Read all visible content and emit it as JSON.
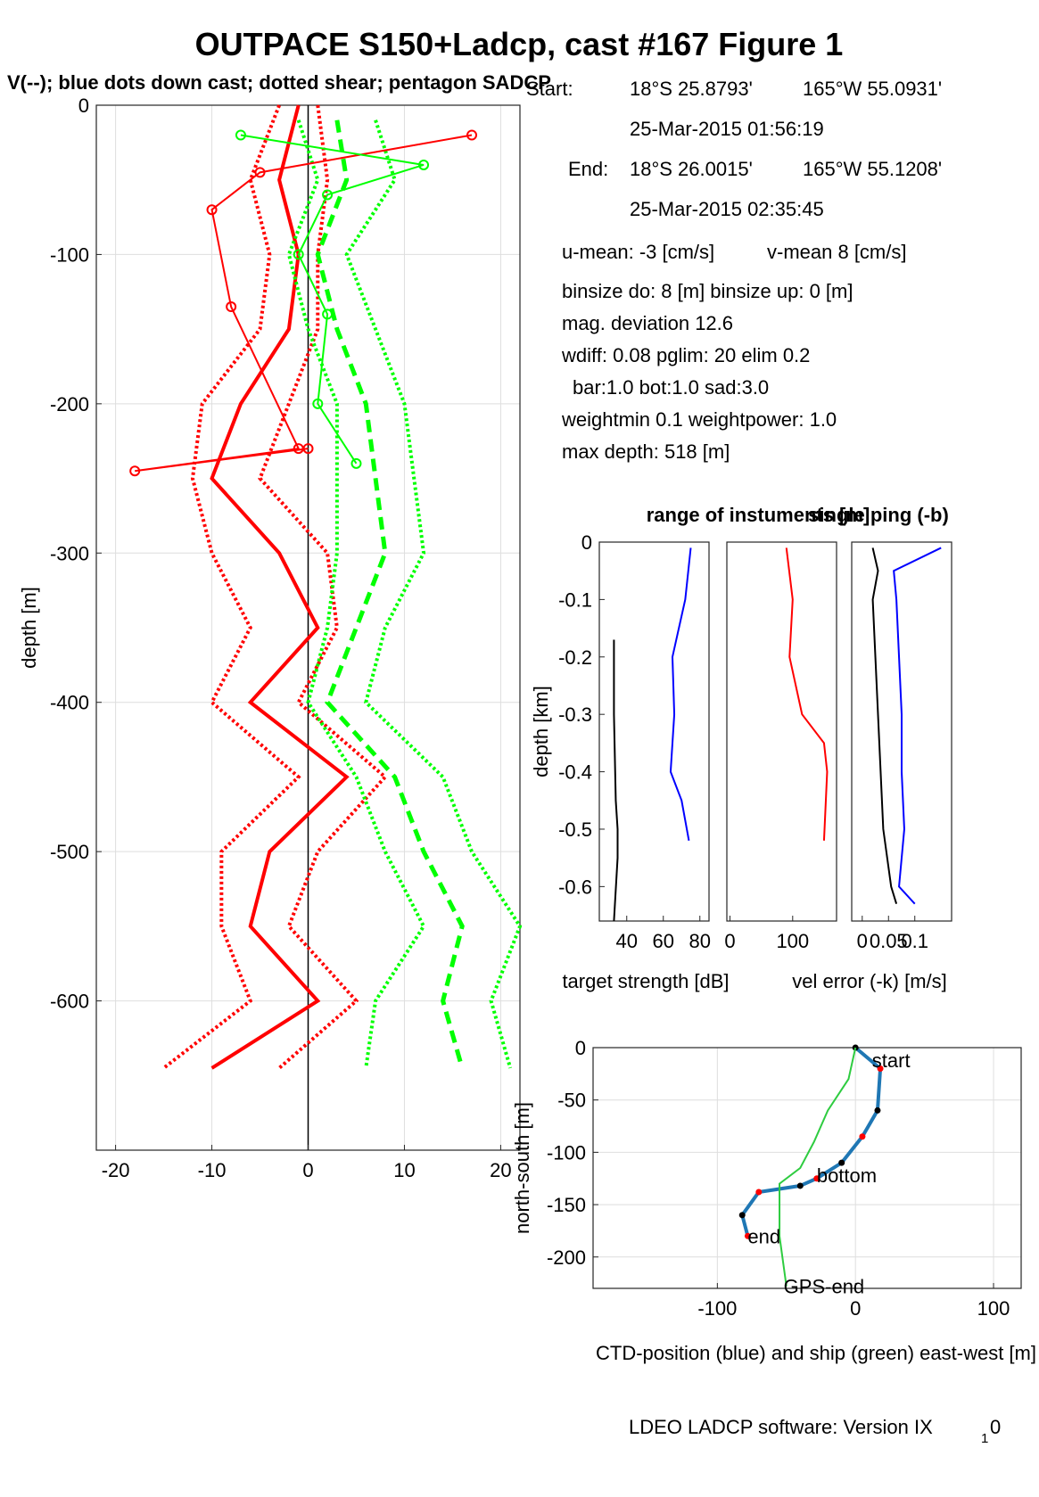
{
  "title": "OUTPACE S150+Ladcp, cast #167  Figure 1",
  "subtitle": "V(--); blue dots down cast; dotted shear; pentagon SADCP",
  "info": {
    "start_label": "Start:",
    "start_lat": "18°S 25.8793'",
    "start_lon": "165°W 55.0931'",
    "start_time": "25-Mar-2015 01:56:19",
    "end_label": "End:",
    "end_lat": "18°S 26.0015'",
    "end_lon": "165°W 55.1208'",
    "end_time": "25-Mar-2015 02:35:45",
    "u_mean": "u-mean:  -3 [cm/s]",
    "v_mean": "v-mean   8 [cm/s]",
    "binsize": "binsize do: 8 [m]  binsize up:  0 [m]",
    "mag_dev": "mag. deviation 12.6",
    "wdiff": "wdiff: 0.08  pglim: 20  elim 0.2",
    "bar": "bar:1.0 bot:1.0 sad:3.0",
    "weight": "weightmin 0.1  weightpower: 1.0",
    "max_depth": "max depth: 518 [m]"
  },
  "footer": {
    "software": "LDEO LADCP software: Version IX",
    "sub": "1",
    "suffix": "0"
  },
  "colors": {
    "red": "#ff0000",
    "green": "#00ff00",
    "blue": "#0000ff",
    "ctd_blue": "#1f77b4",
    "ship_green": "#2ecc40",
    "yellow": "#ffff00",
    "black": "#000000"
  },
  "chart_data": [
    {
      "id": "velocity_profile",
      "type": "line",
      "xlim": [
        -22,
        22
      ],
      "ylim": [
        -700,
        0
      ],
      "xticks": [
        -20,
        -10,
        0,
        10,
        20
      ],
      "yticks": [
        0,
        -100,
        -200,
        -300,
        -400,
        -500,
        -600
      ],
      "ylabel": "depth [m]",
      "grid": true,
      "series": [
        {
          "color": "red",
          "style": "bold",
          "depth": [
            0,
            -50,
            -100,
            -150,
            -200,
            -250,
            -300,
            -350,
            -400,
            -450,
            -500,
            -550,
            -600,
            -645
          ],
          "values": [
            -1,
            -3,
            -1,
            -2,
            -7,
            -10,
            -3,
            1,
            -6,
            4,
            -4,
            -6,
            1,
            -10
          ]
        },
        {
          "color": "red",
          "style": "dotted-lo",
          "depth": [
            0,
            -50,
            -100,
            -150,
            -200,
            -250,
            -300,
            -350,
            -400,
            -450,
            -500,
            -550,
            -600,
            -645
          ],
          "values": [
            -3,
            -6,
            -4,
            -5,
            -11,
            -12,
            -10,
            -6,
            -10,
            -1,
            -9,
            -9,
            -6,
            -15
          ]
        },
        {
          "color": "red",
          "style": "dotted-hi",
          "depth": [
            0,
            -50,
            -100,
            -150,
            -200,
            -250,
            -300,
            -350,
            -400,
            -450,
            -500,
            -550,
            -600,
            -645
          ],
          "values": [
            1,
            2,
            1,
            1,
            -2,
            -5,
            2,
            3,
            -1,
            8,
            1,
            -2,
            5,
            -3
          ]
        },
        {
          "color": "green",
          "style": "dashed",
          "depth": [
            -10,
            -50,
            -100,
            -150,
            -200,
            -250,
            -300,
            -350,
            -400,
            -450,
            -500,
            -550,
            -600,
            -645
          ],
          "values": [
            3,
            4,
            1,
            3,
            6,
            7,
            8,
            5,
            2,
            9,
            12,
            16,
            14,
            16
          ]
        },
        {
          "color": "green",
          "style": "dotted-lo",
          "depth": [
            -10,
            -50,
            -100,
            -150,
            -200,
            -250,
            -300,
            -350,
            -400,
            -450,
            -500,
            -550,
            -600,
            -645
          ],
          "values": [
            -1,
            1,
            -2,
            0,
            3,
            3,
            3,
            2,
            0,
            5,
            8,
            12,
            7,
            6
          ]
        },
        {
          "color": "green",
          "style": "dotted-hi",
          "depth": [
            -10,
            -50,
            -100,
            -150,
            -200,
            -250,
            -300,
            -350,
            -400,
            -450,
            -500,
            -550,
            -600,
            -645
          ],
          "values": [
            7,
            9,
            4,
            7,
            10,
            11,
            12,
            8,
            6,
            14,
            17,
            22,
            19,
            21
          ]
        },
        {
          "color": "red",
          "style": "sadcp",
          "depth": [
            -20,
            -45,
            -70,
            -135,
            -230,
            -245,
            -230
          ],
          "values": [
            17,
            -5,
            -10,
            -8,
            -1,
            -18,
            0
          ]
        },
        {
          "color": "green",
          "style": "sadcp",
          "depth": [
            -20,
            -40,
            -60,
            -100,
            -140,
            -200,
            -240
          ],
          "values": [
            -7,
            12,
            2,
            -1,
            2,
            1,
            5
          ]
        }
      ]
    },
    {
      "id": "target_strength",
      "type": "line",
      "xlim": [
        25,
        85
      ],
      "ylim": [
        -0.66,
        0
      ],
      "xticks": [
        40,
        60,
        80
      ],
      "yticks": [
        0,
        -0.1,
        -0.2,
        -0.3,
        -0.4,
        -0.5,
        -0.6
      ],
      "ylabel": "depth [km]",
      "xlabel": "target strength [dB]",
      "series": [
        {
          "color": "blue",
          "depth": [
            -0.01,
            -0.1,
            -0.2,
            -0.3,
            -0.4,
            -0.45,
            -0.52
          ],
          "values": [
            75,
            72,
            65,
            66,
            64,
            70,
            74
          ]
        },
        {
          "color": "black",
          "depth": [
            -0.17,
            -0.3,
            -0.45,
            -0.5,
            -0.55,
            -0.66
          ],
          "values": [
            33,
            33,
            34,
            35,
            35,
            33
          ]
        }
      ]
    },
    {
      "id": "range",
      "type": "line",
      "xlim": [
        -5,
        170
      ],
      "ylim": [
        -0.66,
        0
      ],
      "xticks": [
        0,
        100
      ],
      "title": "range of instuments [m]",
      "series": [
        {
          "color": "red",
          "depth": [
            -0.01,
            -0.1,
            -0.2,
            -0.3,
            -0.35,
            -0.4,
            -0.52
          ],
          "values": [
            90,
            100,
            95,
            115,
            150,
            155,
            150
          ]
        }
      ]
    },
    {
      "id": "vel_error",
      "type": "line",
      "xlim": [
        -0.02,
        0.17
      ],
      "ylim": [
        -0.66,
        0
      ],
      "xticks": [
        0,
        0.05,
        0.1
      ],
      "xticklabels": [
        "0",
        "0.05",
        "0.1"
      ],
      "title": "single ping (-b)",
      "xlabel": "vel error (-k) [m/s]",
      "series": [
        {
          "color": "black",
          "depth": [
            -0.01,
            -0.05,
            -0.1,
            -0.2,
            -0.3,
            -0.4,
            -0.5,
            -0.6,
            -0.63
          ],
          "values": [
            0.02,
            0.03,
            0.02,
            0.025,
            0.03,
            0.035,
            0.04,
            0.055,
            0.065
          ]
        },
        {
          "color": "blue",
          "depth": [
            -0.01,
            -0.05,
            -0.1,
            -0.2,
            -0.3,
            -0.4,
            -0.5,
            -0.6,
            -0.63
          ],
          "values": [
            0.15,
            0.06,
            0.065,
            0.07,
            0.075,
            0.075,
            0.08,
            0.07,
            0.1
          ]
        }
      ]
    },
    {
      "id": "ctd_position",
      "type": "line",
      "xlim": [
        -190,
        120
      ],
      "ylim": [
        -230,
        0
      ],
      "xticks": [
        -100,
        0,
        100
      ],
      "yticks": [
        0,
        -50,
        -100,
        -150,
        -200
      ],
      "xlabel": "CTD-position (blue) and ship (green) east-west [m]",
      "ylabel": "north-south [m]",
      "labels": [
        {
          "text": "start",
          "x": 12,
          "y": -12
        },
        {
          "text": "bottom",
          "x": -28,
          "y": -122
        },
        {
          "text": "end",
          "x": -78,
          "y": -180
        },
        {
          "text": "GPS-end",
          "x": -52,
          "y": -228
        }
      ],
      "series": [
        {
          "color": "ctd_blue",
          "x": [
            0,
            18,
            16,
            5,
            -10,
            -28,
            -40,
            -70,
            -82,
            -78
          ],
          "y": [
            0,
            -20,
            -60,
            -85,
            -110,
            -125,
            -132,
            -138,
            -160,
            -180
          ]
        },
        {
          "color": "ship_green",
          "x": [
            0,
            -5,
            -20,
            -30,
            -40,
            -55,
            -55,
            -50
          ],
          "y": [
            0,
            -30,
            -60,
            -90,
            -115,
            -130,
            -180,
            -228
          ]
        }
      ]
    }
  ]
}
